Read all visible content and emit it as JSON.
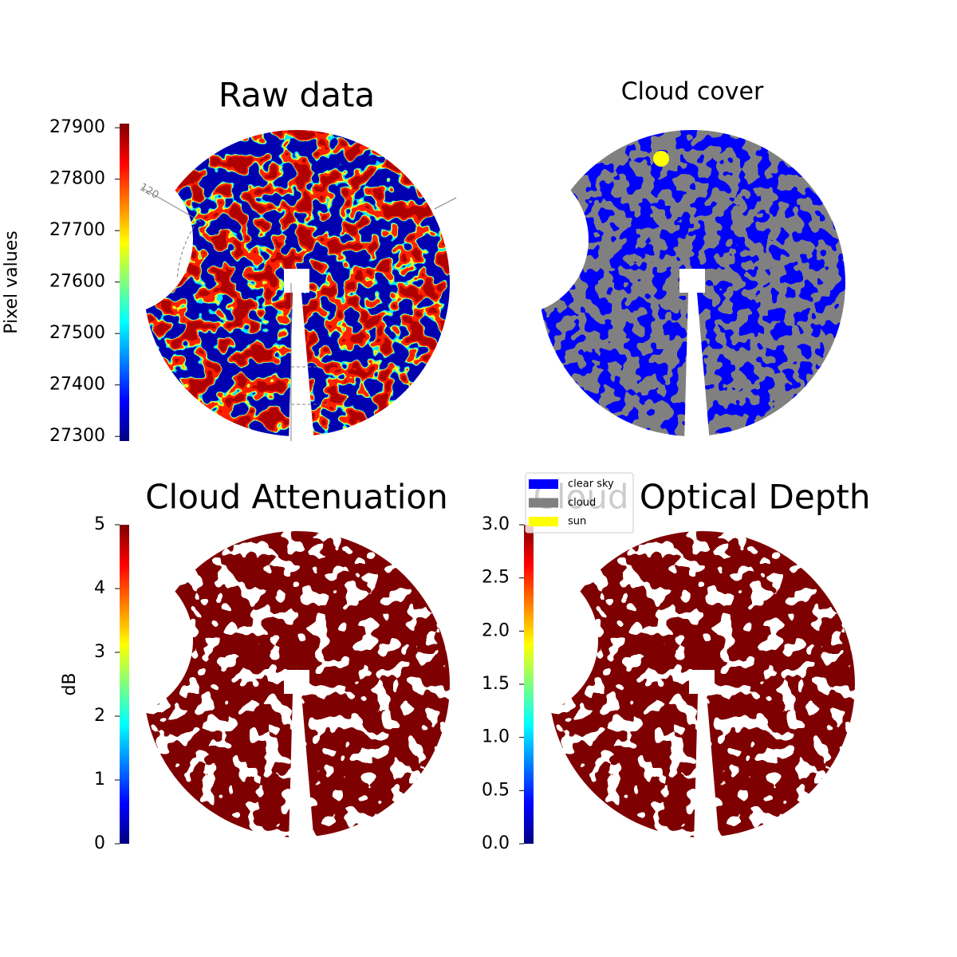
{
  "chart_data": [
    {
      "type": "image",
      "title": "Raw data",
      "colormap": "jet",
      "colorbar": {
        "label": "Pixel values",
        "lim": [
          27291,
          27908
        ],
        "ticks": [
          27300,
          27400,
          27500,
          27600,
          27700,
          27800,
          27900
        ]
      },
      "annotations": [
        "120"
      ]
    },
    {
      "type": "categorical-image",
      "title": "Cloud cover",
      "legend": [
        {
          "name": "clear sky",
          "color": "#0000ff"
        },
        {
          "name": "cloud",
          "color": "#808080"
        },
        {
          "name": "sun",
          "color": "#ffff00"
        }
      ]
    },
    {
      "type": "image",
      "title": "Cloud Attenuation",
      "colormap": "jet",
      "colorbar": {
        "label": "dB",
        "lim": [
          0,
          5
        ],
        "ticks": [
          0,
          1,
          2,
          3,
          4,
          5
        ]
      }
    },
    {
      "type": "image",
      "title": "Cloud Optical Depth",
      "colormap": "jet",
      "colorbar": {
        "lim": [
          0,
          3
        ],
        "ticks": [
          {
            "value": 0,
            "label": "0.0"
          },
          0.5,
          {
            "value": 1,
            "label": "1.0"
          },
          1.5,
          {
            "value": 2,
            "label": "2.0"
          },
          2.5,
          {
            "value": 3,
            "label": "3.0"
          }
        ]
      }
    }
  ]
}
